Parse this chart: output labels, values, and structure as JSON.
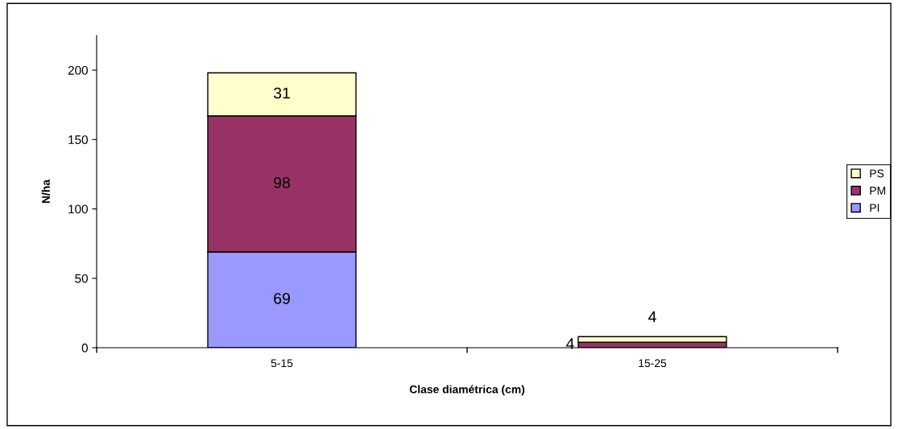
{
  "chart_data": {
    "type": "bar",
    "stacked": true,
    "xlabel": "Clase diamétrica (cm)",
    "ylabel": "N/ha",
    "categories": [
      "5-15",
      "15-25"
    ],
    "series": [
      {
        "name": "PI",
        "color": "#9999ff",
        "values": [
          69,
          0
        ],
        "value_labels": [
          "69",
          null
        ]
      },
      {
        "name": "PM",
        "color": "#993366",
        "values": [
          98,
          4
        ],
        "value_labels": [
          "98",
          "4"
        ]
      },
      {
        "name": "PS",
        "color": "#ffffcc",
        "values": [
          31,
          4
        ],
        "value_labels": [
          "31",
          "4"
        ]
      }
    ],
    "ylim": [
      0,
      225
    ],
    "yticks": [
      0,
      50,
      100,
      150,
      200
    ],
    "grid": false,
    "legend": "right"
  }
}
